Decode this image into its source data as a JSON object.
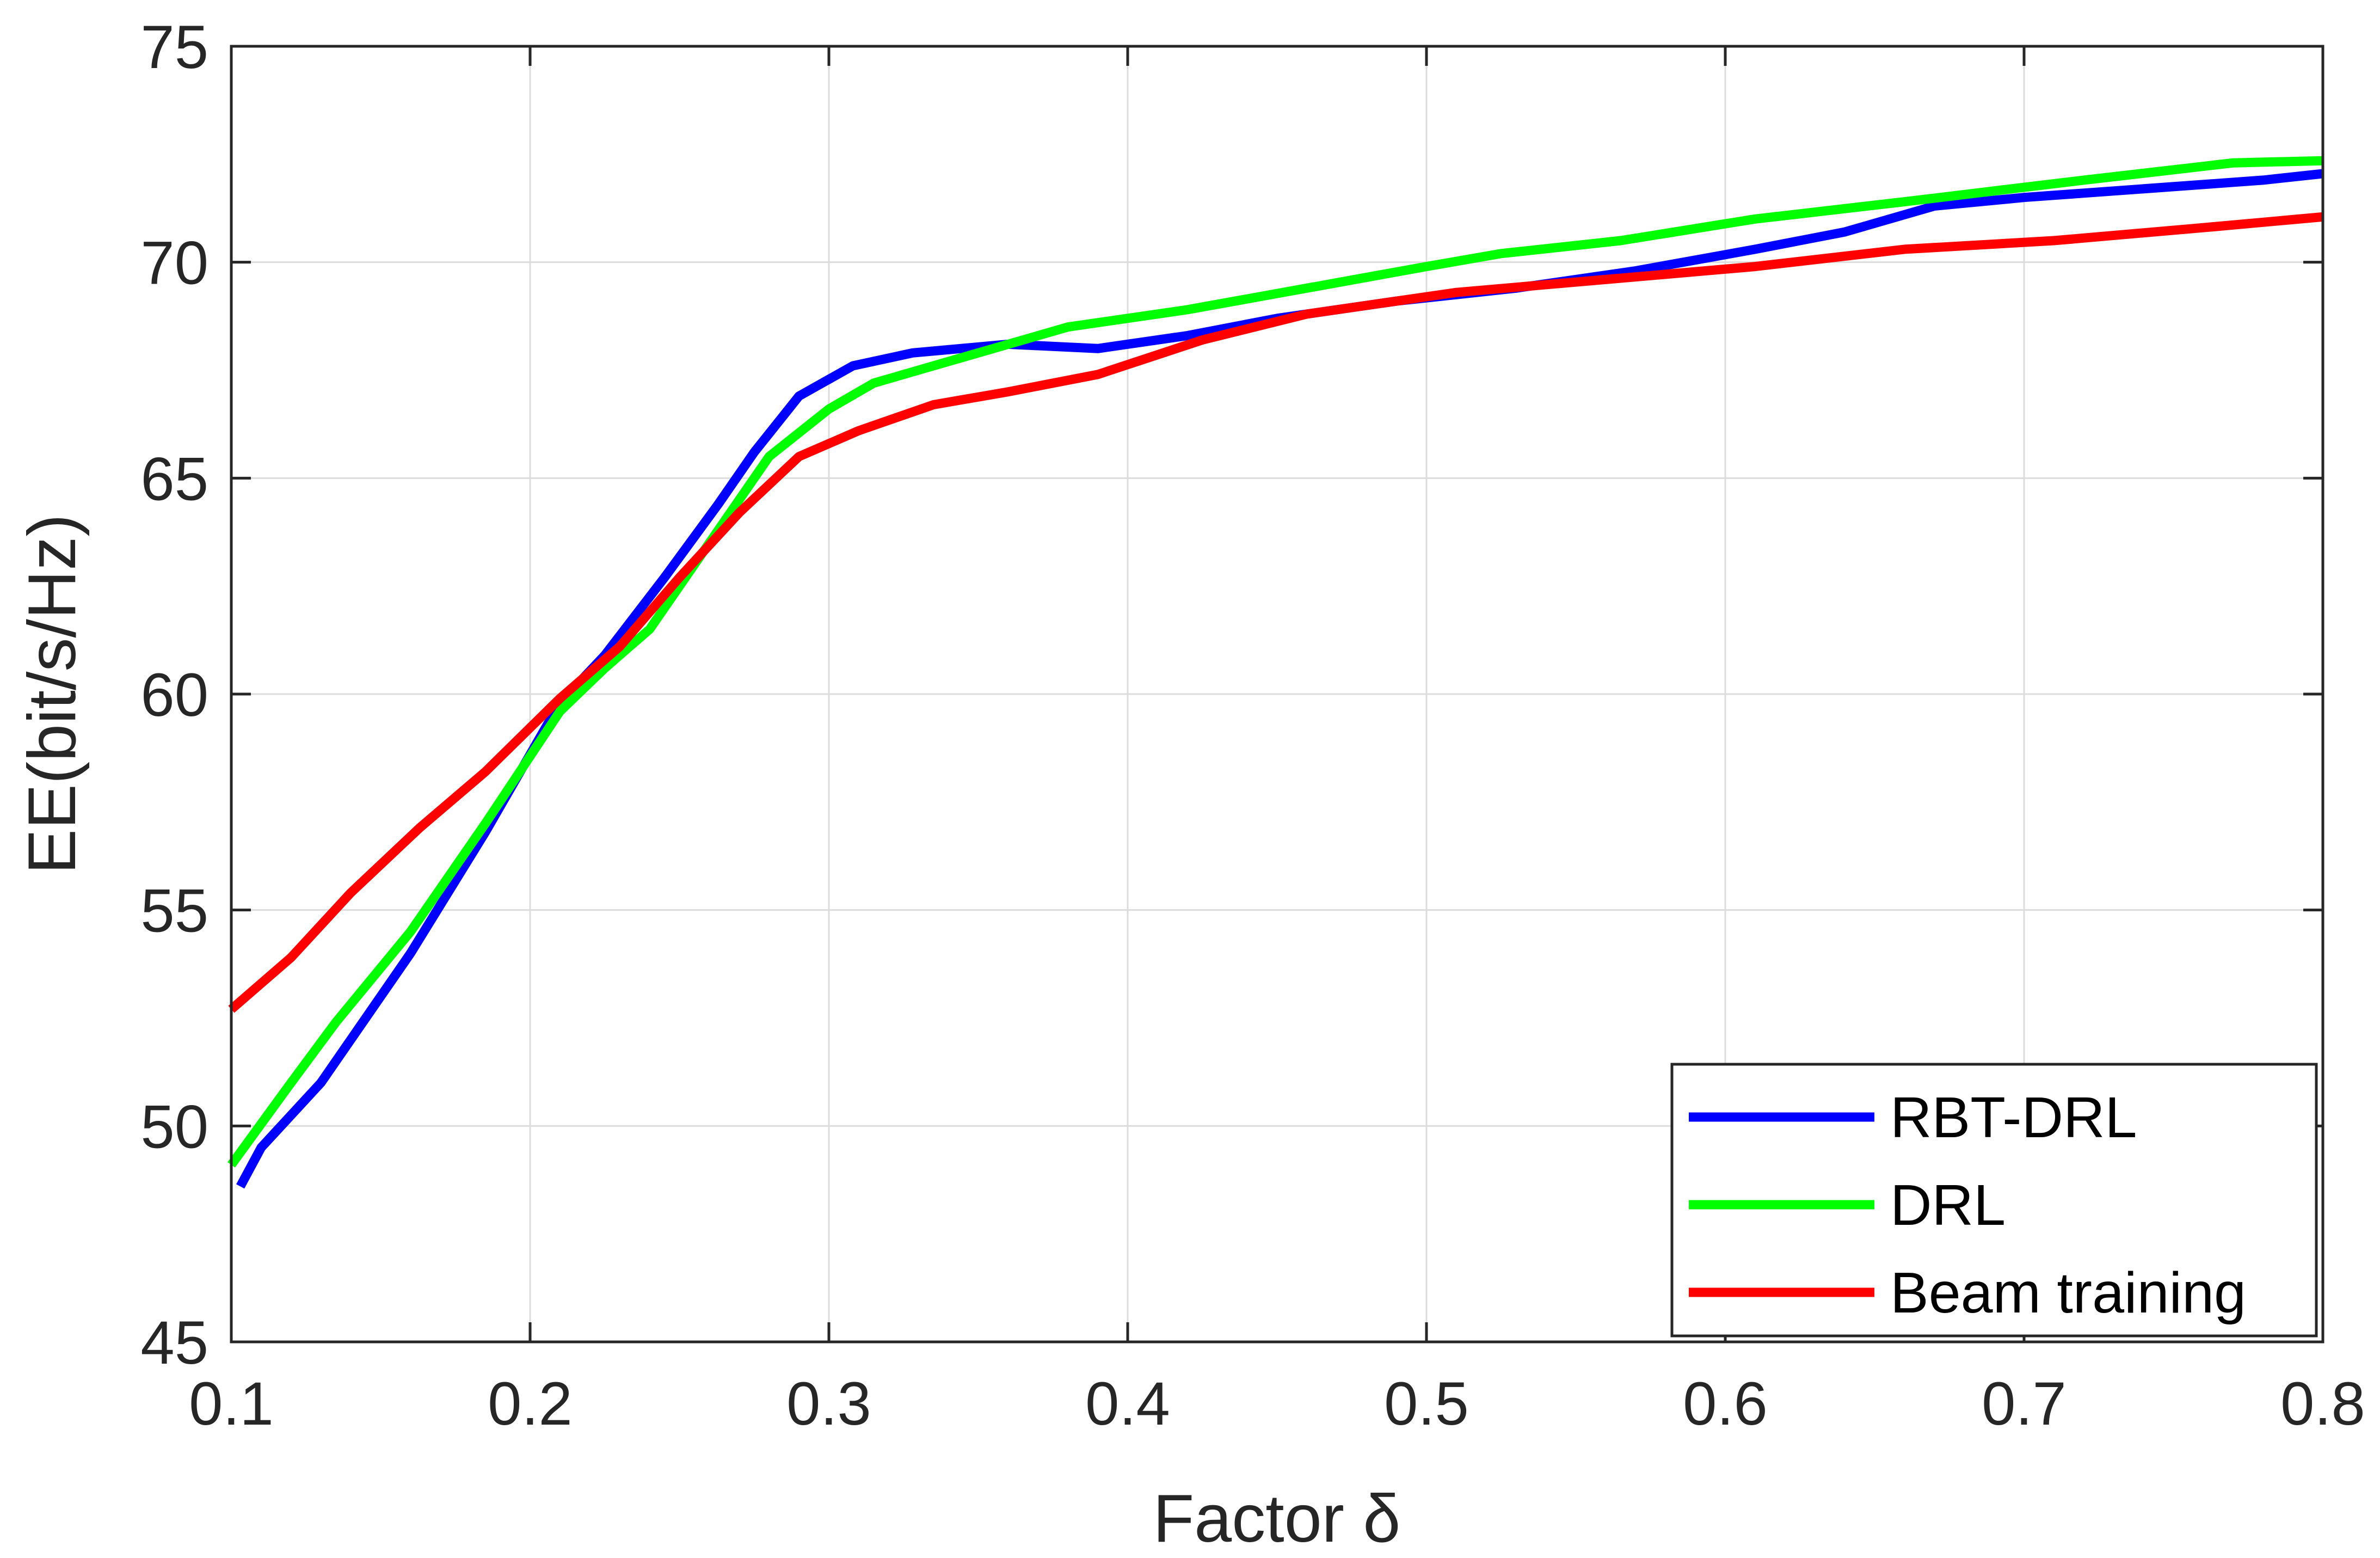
{
  "chart_data": {
    "type": "line",
    "title": "",
    "xlabel": "Factor δ",
    "ylabel": "EE(bit/s/Hz)",
    "xlim": [
      0.1,
      0.8
    ],
    "ylim": [
      45,
      75
    ],
    "xticks": [
      0.1,
      0.2,
      0.3,
      0.4,
      0.5,
      0.6,
      0.7,
      0.8
    ],
    "xtick_labels": [
      "0.1",
      "0.2",
      "0.3",
      "0.4",
      "0.5",
      "0.6",
      "0.7",
      "0.8"
    ],
    "yticks": [
      45,
      50,
      55,
      60,
      65,
      70,
      75
    ],
    "ytick_labels": [
      "45",
      "50",
      "55",
      "60",
      "65",
      "70",
      "75"
    ],
    "grid": true,
    "legend_position": "bottom-right",
    "series": [
      {
        "name": "RBT-DRL",
        "color": "#0000ff",
        "x": [
          0.103,
          0.11,
          0.13,
          0.16,
          0.185,
          0.21,
          0.225,
          0.245,
          0.263,
          0.275,
          0.29,
          0.308,
          0.328,
          0.36,
          0.39,
          0.42,
          0.45,
          0.49,
          0.53,
          0.57,
          0.61,
          0.64,
          0.67,
          0.7,
          0.73,
          0.76,
          0.78,
          0.8
        ],
        "y": [
          48.6,
          49.5,
          51.0,
          54.0,
          56.8,
          59.8,
          60.9,
          62.7,
          64.4,
          65.6,
          66.9,
          67.6,
          67.9,
          68.1,
          68.0,
          68.3,
          68.7,
          69.1,
          69.4,
          69.8,
          70.3,
          70.7,
          71.3,
          71.5,
          71.65,
          71.8,
          71.9,
          72.05
        ]
      },
      {
        "name": "DRL",
        "color": "#00ff00",
        "x": [
          0.1,
          0.12,
          0.135,
          0.16,
          0.185,
          0.21,
          0.225,
          0.24,
          0.26,
          0.28,
          0.3,
          0.315,
          0.34,
          0.38,
          0.42,
          0.46,
          0.5,
          0.525,
          0.565,
          0.61,
          0.66,
          0.72,
          0.77,
          0.8
        ],
        "y": [
          49.1,
          51.0,
          52.4,
          54.5,
          57.0,
          59.6,
          60.6,
          61.5,
          63.5,
          65.5,
          66.6,
          67.2,
          67.7,
          68.5,
          68.9,
          69.4,
          69.9,
          70.2,
          70.5,
          71.0,
          71.4,
          71.9,
          72.3,
          72.35
        ]
      },
      {
        "name": "Beam training",
        "color": "#ff0000",
        "x": [
          0.1,
          0.12,
          0.14,
          0.163,
          0.185,
          0.21,
          0.23,
          0.25,
          0.27,
          0.29,
          0.31,
          0.335,
          0.36,
          0.39,
          0.425,
          0.46,
          0.51,
          0.56,
          0.61,
          0.66,
          0.71,
          0.76,
          0.8
        ],
        "y": [
          52.7,
          53.9,
          55.4,
          56.9,
          58.2,
          59.9,
          61.1,
          62.7,
          64.2,
          65.5,
          66.1,
          66.7,
          67.0,
          67.4,
          68.2,
          68.8,
          69.3,
          69.6,
          69.9,
          70.3,
          70.5,
          70.8,
          71.05
        ]
      }
    ]
  }
}
